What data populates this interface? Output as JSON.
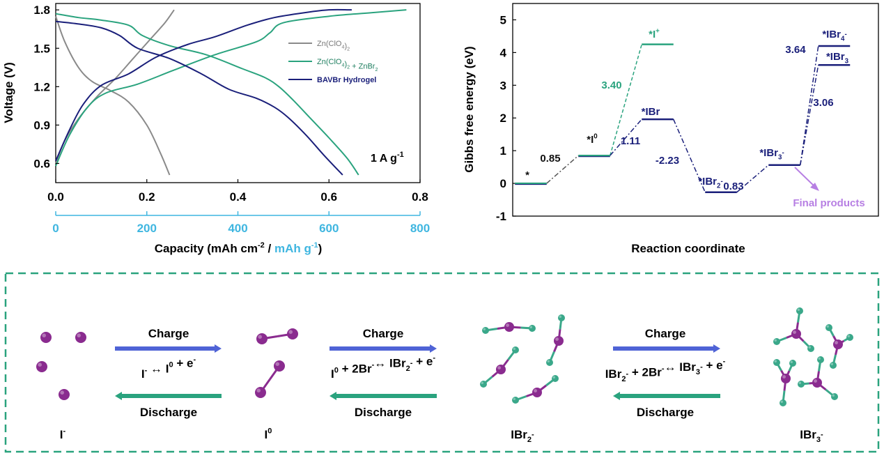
{
  "colors": {
    "gray": "#8a8a8a",
    "green": "#2aa37e",
    "navy": "#1a1f7a",
    "sky": "#3fb6e0",
    "violet": "#b77fe3",
    "iodine": "#8a2b8f",
    "bromine": "#3aa88a",
    "arrow_blue": "#4f63d6",
    "arrow_green": "#2aa37e"
  },
  "chart_data": [
    {
      "type": "line",
      "xlabel_black": "Capacity (mAh cm",
      "xlabel_sup1": "-2",
      "xlabel_sep": " / ",
      "xlabel_blue": "mAh g",
      "xlabel_sup2": "-1",
      "xlabel_close": ")",
      "ylabel": "Voltage (V)",
      "xlim": [
        0,
        0.8
      ],
      "ylim": [
        0.45,
        1.85
      ],
      "x_ticks": [
        0.0,
        0.2,
        0.4,
        0.6,
        0.8
      ],
      "x_tick_labels": [
        "0.0",
        "0.2",
        "0.4",
        "0.6",
        "0.8"
      ],
      "y_ticks": [
        0.6,
        0.9,
        1.2,
        1.5,
        1.8
      ],
      "y_tick_labels": [
        "0.6",
        "0.9",
        "1.2",
        "1.5",
        "1.8"
      ],
      "x2_ticks": [
        0,
        200,
        400,
        600,
        800
      ],
      "x2_tick_labels": [
        "0",
        "200",
        "400",
        "600",
        "800"
      ],
      "x2_lim": [
        0,
        800
      ],
      "annotation": "1 A g",
      "annotation_sup": "-1",
      "legend_position": "right",
      "legend": [
        {
          "text": "Zn(ClO",
          "sub": "4",
          "text2": ")",
          "sub2": "2",
          "text3": "",
          "color": "#8a8a8a"
        },
        {
          "text": "Zn(ClO",
          "sub": "4",
          "text2": ")",
          "sub2": "2",
          "text3": " + ZnBr",
          "sub3": "2",
          "color": "#2aa37e"
        },
        {
          "text": "BAVBr Hydrogel",
          "color": "#1a1f7a"
        }
      ],
      "series": [
        {
          "color": "#8a8a8a",
          "charge": [
            [
              0.0,
              0.6
            ],
            [
              0.02,
              0.78
            ],
            [
              0.05,
              0.95
            ],
            [
              0.09,
              1.12
            ],
            [
              0.13,
              1.26
            ],
            [
              0.17,
              1.42
            ],
            [
              0.21,
              1.58
            ],
            [
              0.24,
              1.7
            ],
            [
              0.26,
              1.8
            ]
          ],
          "discharge": [
            [
              0.0,
              1.75
            ],
            [
              0.02,
              1.55
            ],
            [
              0.05,
              1.35
            ],
            [
              0.08,
              1.24
            ],
            [
              0.12,
              1.17
            ],
            [
              0.16,
              1.08
            ],
            [
              0.2,
              0.9
            ],
            [
              0.23,
              0.68
            ],
            [
              0.25,
              0.51
            ]
          ]
        },
        {
          "color": "#2aa37e",
          "charge": [
            [
              0.0,
              0.58
            ],
            [
              0.03,
              0.82
            ],
            [
              0.07,
              1.04
            ],
            [
              0.11,
              1.15
            ],
            [
              0.18,
              1.22
            ],
            [
              0.26,
              1.33
            ],
            [
              0.35,
              1.45
            ],
            [
              0.44,
              1.55
            ],
            [
              0.47,
              1.62
            ],
            [
              0.5,
              1.7
            ],
            [
              0.6,
              1.75
            ],
            [
              0.7,
              1.78
            ],
            [
              0.77,
              1.8
            ]
          ],
          "discharge": [
            [
              0.0,
              1.77
            ],
            [
              0.05,
              1.74
            ],
            [
              0.1,
              1.72
            ],
            [
              0.16,
              1.68
            ],
            [
              0.19,
              1.6
            ],
            [
              0.25,
              1.52
            ],
            [
              0.33,
              1.45
            ],
            [
              0.41,
              1.34
            ],
            [
              0.46,
              1.27
            ],
            [
              0.49,
              1.2
            ],
            [
              0.52,
              1.1
            ],
            [
              0.56,
              0.95
            ],
            [
              0.6,
              0.8
            ],
            [
              0.64,
              0.64
            ],
            [
              0.665,
              0.51
            ]
          ]
        },
        {
          "color": "#1a1f7a",
          "charge": [
            [
              0.0,
              0.62
            ],
            [
              0.03,
              0.86
            ],
            [
              0.06,
              1.06
            ],
            [
              0.1,
              1.21
            ],
            [
              0.16,
              1.3
            ],
            [
              0.22,
              1.43
            ],
            [
              0.29,
              1.53
            ],
            [
              0.35,
              1.59
            ],
            [
              0.42,
              1.68
            ],
            [
              0.48,
              1.74
            ],
            [
              0.55,
              1.78
            ],
            [
              0.6,
              1.8
            ],
            [
              0.65,
              1.8
            ]
          ],
          "discharge": [
            [
              0.0,
              1.71
            ],
            [
              0.05,
              1.69
            ],
            [
              0.1,
              1.66
            ],
            [
              0.14,
              1.6
            ],
            [
              0.18,
              1.5
            ],
            [
              0.25,
              1.42
            ],
            [
              0.32,
              1.3
            ],
            [
              0.38,
              1.18
            ],
            [
              0.44,
              1.11
            ],
            [
              0.48,
              1.04
            ],
            [
              0.51,
              0.96
            ],
            [
              0.55,
              0.82
            ],
            [
              0.59,
              0.66
            ],
            [
              0.63,
              0.51
            ]
          ]
        }
      ]
    },
    {
      "type": "line",
      "xlabel": "Reaction coordinate",
      "ylabel": "Gibbs free energy (eV)",
      "ylim": [
        -1,
        5.5
      ],
      "y_ticks": [
        -1,
        0,
        1,
        2,
        3,
        4,
        5
      ],
      "y_tick_labels": [
        "-1",
        "0",
        "1",
        "2",
        "3",
        "4",
        "5"
      ],
      "levels": [
        {
          "label": "*",
          "sup": "",
          "color": "#111111",
          "x": [
            0.05,
            0.75
          ],
          "y": 0.0
        },
        {
          "label": "*I",
          "sup": "0",
          "color": "#111111",
          "x": [
            1.45,
            2.15
          ],
          "y": 0.85
        },
        {
          "label": "*I",
          "sup": "+",
          "color": "#2aa37e",
          "x": [
            2.85,
            3.55
          ],
          "y": 4.25
        },
        {
          "label": "*IBr",
          "sup": "",
          "color": "#1a1f7a",
          "x": [
            2.85,
            3.55
          ],
          "y": 1.96
        },
        {
          "label": "*IBr",
          "sub": "2",
          "sup": "-",
          "color": "#1a1f7a",
          "x": [
            4.25,
            4.95
          ],
          "y": -0.27
        },
        {
          "label": "*IBr",
          "sub": "3",
          "sup": "-",
          "color": "#1a1f7a",
          "x": [
            5.65,
            6.35
          ],
          "y": 0.56
        },
        {
          "label": "*IBr",
          "sub": "3",
          "sup": "",
          "color": "#1a1f7a",
          "x": [
            6.75,
            7.45
          ],
          "y": 3.62
        },
        {
          "label": "*IBr",
          "sub": "4",
          "sup": "-",
          "color": "#1a1f7a",
          "x": [
            6.75,
            7.45
          ],
          "y": 4.2
        }
      ],
      "step_labels": [
        {
          "text": "0.85",
          "color": "#111111"
        },
        {
          "text": "3.40",
          "color": "#2aa37e"
        },
        {
          "text": "1.11",
          "color": "#1a1f7a"
        },
        {
          "text": "-2.23",
          "color": "#1a1f7a"
        },
        {
          "text": "0.83",
          "color": "#1a1f7a"
        },
        {
          "text": "3.06",
          "color": "#1a1f7a"
        },
        {
          "text": "3.64",
          "color": "#1a1f7a"
        }
      ],
      "annotation": "Final products"
    }
  ],
  "scheme": {
    "species": [
      {
        "base": "I",
        "sup": "-",
        "sub": ""
      },
      {
        "base": "I",
        "sup": "0",
        "sub": ""
      },
      {
        "base": "IBr",
        "sub": "2",
        "sup": "-"
      },
      {
        "base": "IBr",
        "sub": "3",
        "sup": "-"
      }
    ],
    "steps": [
      {
        "charge": "Charge",
        "discharge": "Discharge",
        "equation": [
          [
            "I",
            ""
          ],
          [
            "-",
            "sup"
          ],
          [
            " ↔ I",
            ""
          ],
          [
            "0",
            "sup"
          ],
          [
            " + e",
            ""
          ],
          [
            "-",
            "sup"
          ]
        ]
      },
      {
        "charge": "Charge",
        "discharge": "Discharge",
        "equation": [
          [
            "I",
            ""
          ],
          [
            "0",
            "sup"
          ],
          [
            " + 2Br",
            ""
          ],
          [
            "-",
            "sup"
          ],
          [
            "↔ IBr",
            ""
          ],
          [
            "2",
            "sub"
          ],
          [
            "-",
            "sup"
          ],
          [
            "  + e",
            ""
          ],
          [
            "-",
            "sup"
          ]
        ]
      },
      {
        "charge": "Charge",
        "discharge": "Discharge",
        "equation": [
          [
            "IBr",
            ""
          ],
          [
            "2",
            "sub"
          ],
          [
            "-",
            "sup"
          ],
          [
            " + 2Br",
            ""
          ],
          [
            "-",
            "sup"
          ],
          [
            "↔ IBr",
            ""
          ],
          [
            "3",
            "sub"
          ],
          [
            "-",
            "sup"
          ],
          [
            "  + e",
            ""
          ],
          [
            "-",
            "sup"
          ]
        ]
      }
    ]
  }
}
